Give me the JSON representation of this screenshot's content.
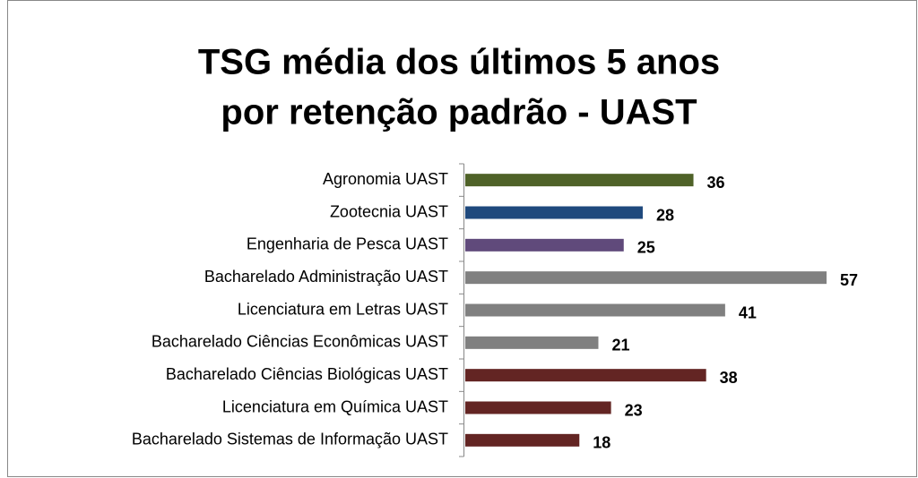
{
  "chart_data": {
    "type": "bar",
    "orientation": "horizontal",
    "title": [
      "TSG média dos últimos 5 anos",
      "por retenção padrão - UAST"
    ],
    "categories": [
      "Agronomia UAST",
      "Zootecnia UAST",
      "Engenharia de Pesca UAST",
      "Bacharelado Administração  UAST",
      "Licenciatura em Letras UAST",
      "Bacharelado Ciências Econômicas UAST",
      "Bacharelado Ciências Biológicas UAST",
      "Licenciatura em Química UAST",
      "Bacharelado Sistemas de Informação UAST"
    ],
    "values": [
      36,
      28,
      25,
      57,
      41,
      21,
      38,
      23,
      18
    ],
    "colors": [
      "#4f6228",
      "#1f497d",
      "#604a7b",
      "#808080",
      "#808080",
      "#808080",
      "#632523",
      "#632523",
      "#632523"
    ]
  }
}
